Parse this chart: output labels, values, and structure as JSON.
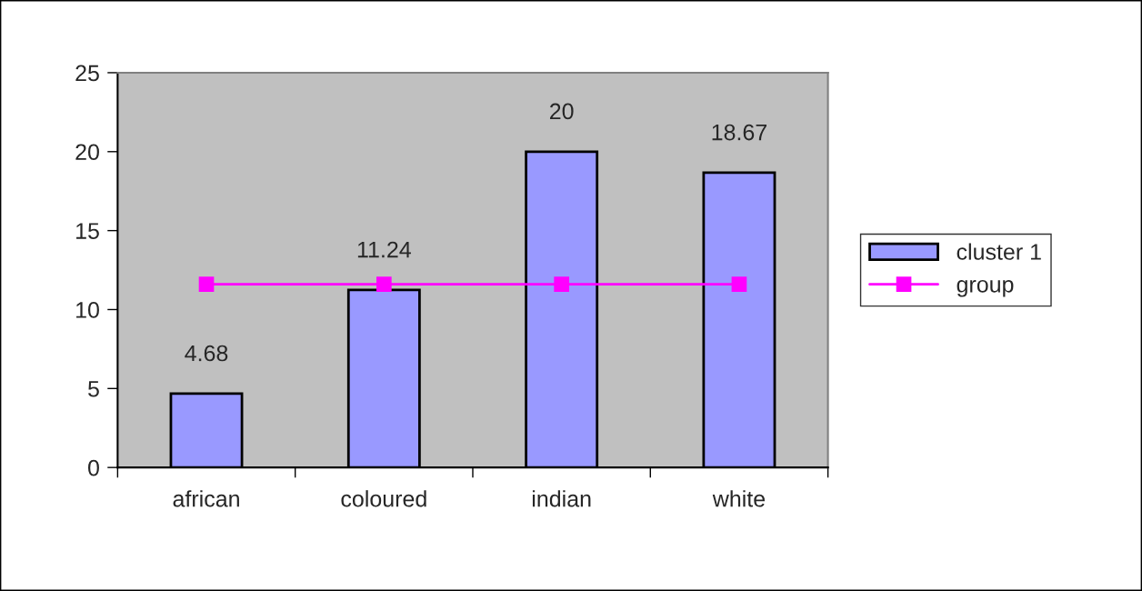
{
  "chart_data": {
    "type": "bar",
    "categories": [
      "african",
      "coloured",
      "indian",
      "white"
    ],
    "series": [
      {
        "name": "cluster 1",
        "color": "#9999ff",
        "values": [
          4.68,
          11.24,
          20,
          18.67
        ],
        "value_labels": [
          "4.68",
          "11.24",
          "20",
          "18.67"
        ]
      },
      {
        "name": "group",
        "type": "line",
        "color": "#ff00ff",
        "values": [
          11.6,
          11.6,
          11.6,
          11.6
        ],
        "marker": "square"
      }
    ],
    "ylim": [
      0,
      25
    ],
    "yticks": [
      0,
      5,
      10,
      15,
      20,
      25
    ],
    "grid": false,
    "legend": "right"
  }
}
